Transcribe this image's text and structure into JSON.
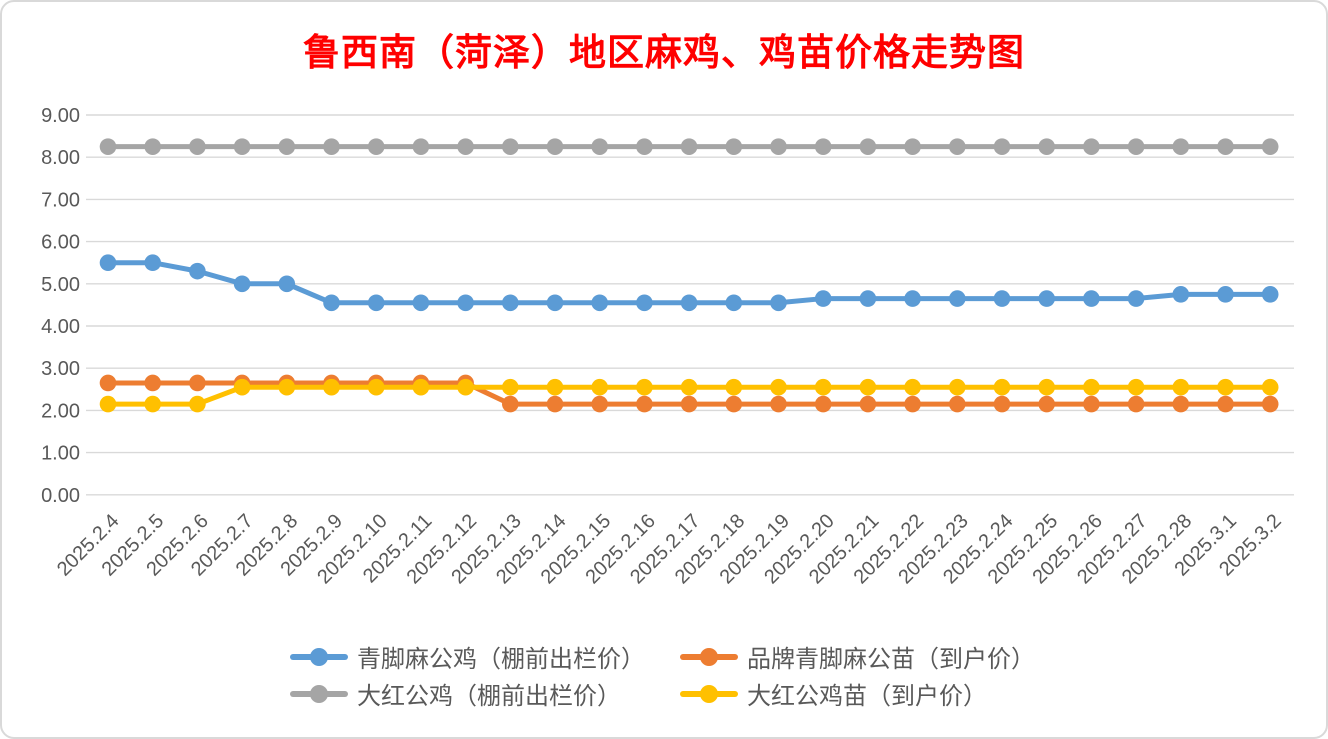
{
  "chart_data": {
    "type": "line",
    "title": "鲁西南（菏泽）地区麻鸡、鸡苗价格走势图",
    "title_color": "#FF0000",
    "categories": [
      "2025.2.4",
      "2025.2.5",
      "2025.2.6",
      "2025.2.7",
      "2025.2.8",
      "2025.2.9",
      "2025.2.10",
      "2025.2.11",
      "2025.2.12",
      "2025.2.13",
      "2025.2.14",
      "2025.2.15",
      "2025.2.16",
      "2025.2.17",
      "2025.2.18",
      "2025.2.19",
      "2025.2.20",
      "2025.2.21",
      "2025.2.22",
      "2025.2.23",
      "2025.2.24",
      "2025.2.25",
      "2025.2.26",
      "2025.2.27",
      "2025.2.28",
      "2025.3.1",
      "2025.3.2"
    ],
    "series": [
      {
        "name": "青脚麻公鸡（棚前出栏价）",
        "color": "#5B9BD5",
        "values": [
          5.5,
          5.5,
          5.3,
          5.0,
          5.0,
          4.55,
          4.55,
          4.55,
          4.55,
          4.55,
          4.55,
          4.55,
          4.55,
          4.55,
          4.55,
          4.55,
          4.65,
          4.65,
          4.65,
          4.65,
          4.65,
          4.65,
          4.65,
          4.65,
          4.75,
          4.75,
          4.75
        ]
      },
      {
        "name": "品牌青脚麻公苗（到户价）",
        "color": "#ED7D31",
        "values": [
          2.65,
          2.65,
          2.65,
          2.65,
          2.65,
          2.65,
          2.65,
          2.65,
          2.65,
          2.15,
          2.15,
          2.15,
          2.15,
          2.15,
          2.15,
          2.15,
          2.15,
          2.15,
          2.15,
          2.15,
          2.15,
          2.15,
          2.15,
          2.15,
          2.15,
          2.15,
          2.15
        ]
      },
      {
        "name": "大红公鸡（棚前出栏价）",
        "color": "#A5A5A5",
        "values": [
          8.25,
          8.25,
          8.25,
          8.25,
          8.25,
          8.25,
          8.25,
          8.25,
          8.25,
          8.25,
          8.25,
          8.25,
          8.25,
          8.25,
          8.25,
          8.25,
          8.25,
          8.25,
          8.25,
          8.25,
          8.25,
          8.25,
          8.25,
          8.25,
          8.25,
          8.25,
          8.25
        ]
      },
      {
        "name": "大红公鸡苗（到户价）",
        "color": "#FFC000",
        "values": [
          2.15,
          2.15,
          2.15,
          2.55,
          2.55,
          2.55,
          2.55,
          2.55,
          2.55,
          2.55,
          2.55,
          2.55,
          2.55,
          2.55,
          2.55,
          2.55,
          2.55,
          2.55,
          2.55,
          2.55,
          2.55,
          2.55,
          2.55,
          2.55,
          2.55,
          2.55,
          2.55
        ]
      }
    ],
    "y_ticks": [
      "0.00",
      "1.00",
      "2.00",
      "3.00",
      "4.00",
      "5.00",
      "6.00",
      "7.00",
      "8.00",
      "9.00"
    ],
    "ylim": [
      0,
      9
    ],
    "xlabel": "",
    "ylabel": "",
    "grid": true,
    "legend_position": "bottom",
    "axis_label_color": "#595959",
    "gridline_color": "#D9D9D9"
  }
}
